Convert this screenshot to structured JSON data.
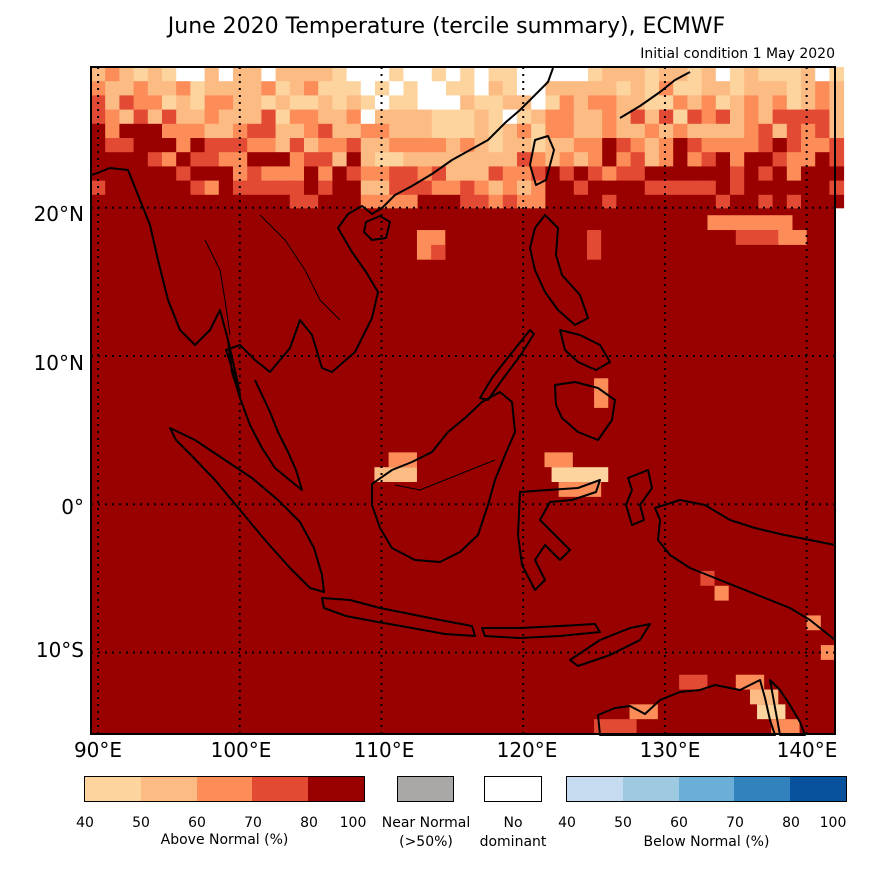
{
  "title": "June 2020 Temperature (tercile summary), ECMWF",
  "subtitle": "Initial condition 1 May 2020",
  "lat_labels": [
    "20°N",
    "10°N",
    "0°",
    "10°S"
  ],
  "lon_labels": [
    "90°E",
    "100°E",
    "110°E",
    "120°E",
    "130°E",
    "140°E"
  ],
  "map": {
    "lon_range": [
      89.5,
      142
    ],
    "lat_range": [
      -15.5,
      29.5
    ],
    "gridlines": "dotted, every 10°",
    "dominant_category": "Above Normal 80–100%",
    "colors": {
      "above_40_50": "#fdd49e",
      "above_50_60": "#fdbb84",
      "above_60_70": "#fc8d59",
      "above_70_80": "#e34a33",
      "above_80_100": "#990000",
      "near_normal": "#aaa7a7",
      "no_dominant": "#ffffff"
    }
  },
  "legend": {
    "above": {
      "ticks": [
        "40",
        "50",
        "60",
        "70",
        "80",
        "100"
      ],
      "label": "Above Normal (%)",
      "colors": [
        "#fdd49e",
        "#fdbb84",
        "#fc8d59",
        "#e34a33",
        "#990000"
      ]
    },
    "near_normal": {
      "line1": "Near Normal",
      "line2": "(>50%)",
      "color": "#aaa7a7"
    },
    "no_dominant": {
      "line1": "No",
      "line2": "dominant",
      "color": "#ffffff"
    },
    "below": {
      "ticks": [
        "40",
        "50",
        "60",
        "70",
        "80",
        "100"
      ],
      "label": "Below Normal (%)",
      "colors": [
        "#c6dbef",
        "#9ecae1",
        "#6baed6",
        "#3182bd",
        "#08519c"
      ]
    }
  }
}
